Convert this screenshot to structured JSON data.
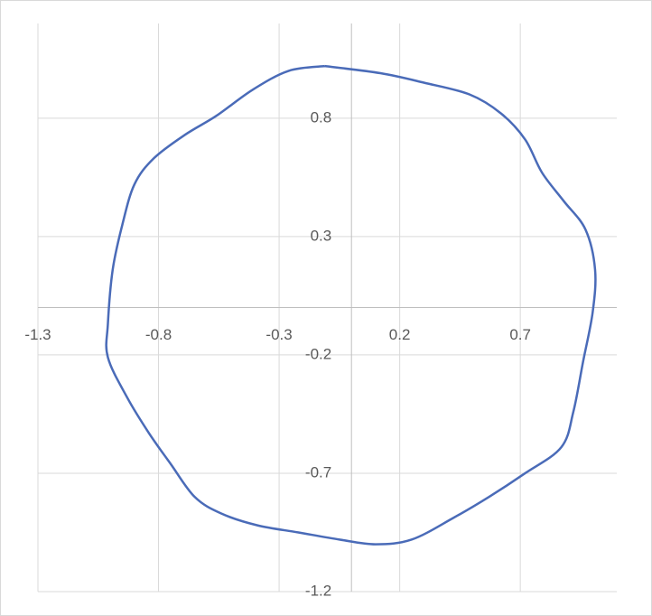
{
  "chart_data": {
    "type": "scatter-line",
    "series": [
      {
        "color": "#4a6bb8",
        "x": [
          -0.11,
          0.12,
          0.3,
          0.49,
          0.62,
          0.72,
          0.79,
          0.88,
          0.97,
          1.01,
          1.0,
          0.96,
          0.92,
          0.87,
          0.72,
          0.57,
          0.42,
          0.25,
          0.1,
          -0.05,
          -0.22,
          -0.39,
          -0.54,
          -0.65,
          -0.75,
          -0.84,
          -0.93,
          -1.01,
          -1.01,
          -0.99,
          -0.95,
          -0.9,
          -0.82,
          -0.69,
          -0.56,
          -0.41,
          -0.26,
          -0.11
        ],
        "values": [
          1.02,
          0.99,
          0.95,
          0.9,
          0.82,
          0.71,
          0.57,
          0.45,
          0.33,
          0.16,
          -0.02,
          -0.23,
          -0.44,
          -0.59,
          -0.7,
          -0.8,
          -0.89,
          -0.98,
          -1.0,
          -0.98,
          -0.95,
          -0.92,
          -0.87,
          -0.8,
          -0.66,
          -0.53,
          -0.38,
          -0.21,
          -0.07,
          0.16,
          0.35,
          0.52,
          0.63,
          0.73,
          0.81,
          0.92,
          1.0,
          1.02
        ]
      }
    ],
    "xlim": [
      -1.3,
      1.1
    ],
    "xticks": [
      -1.3,
      -0.8,
      -0.3,
      0.2,
      0.7
    ],
    "ylim": [
      -1.2,
      1.2
    ],
    "yticks": [
      -1.2,
      -0.7,
      -0.2,
      0.3,
      0.8
    ],
    "grid": true
  }
}
